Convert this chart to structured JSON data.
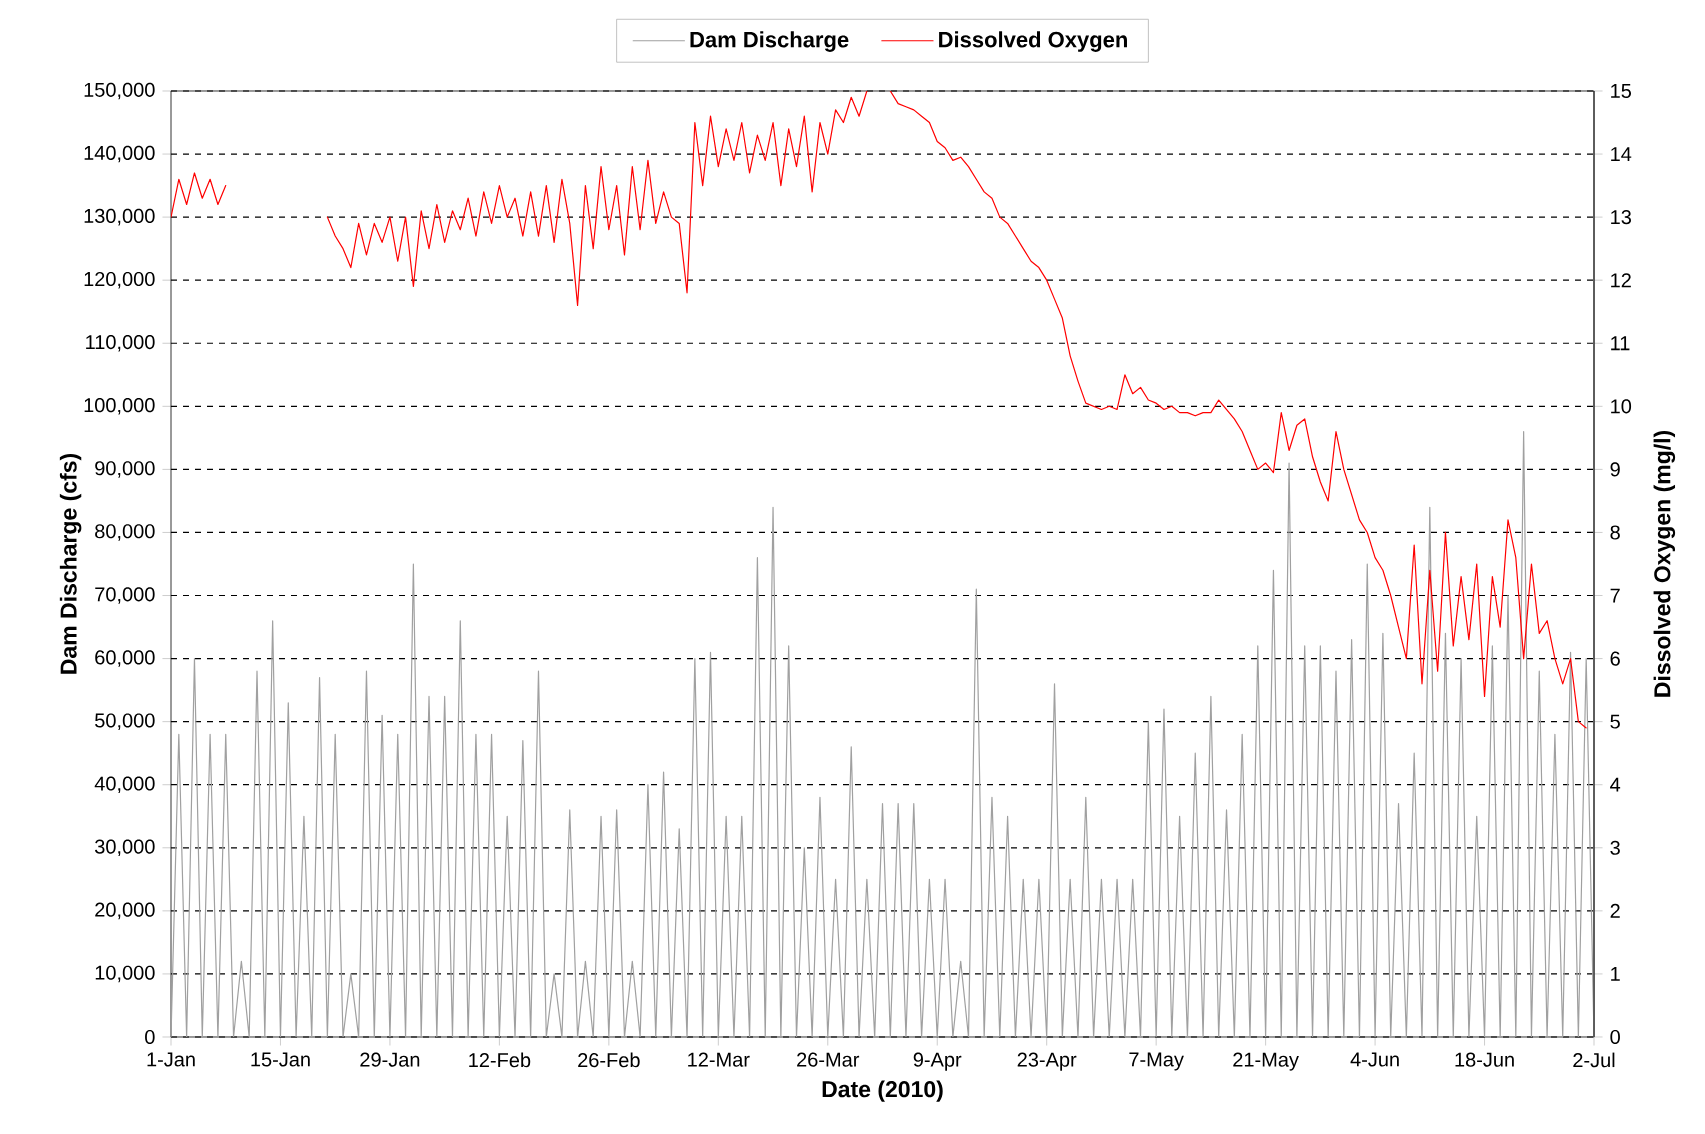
{
  "chart_data": {
    "type": "line",
    "xlabel": "Date (2010)",
    "ylabel": "Dam Discharge (cfs)",
    "y2label": "Dissolved Oxygen (mg/l)",
    "x": [
      "2010-01-01",
      "2010-01-02",
      "2010-01-03",
      "2010-01-04",
      "2010-01-05",
      "2010-01-06",
      "2010-01-07",
      "2010-01-08",
      "2010-01-09",
      "2010-01-10",
      "2010-01-11",
      "2010-01-12",
      "2010-01-13",
      "2010-01-14",
      "2010-01-15",
      "2010-01-16",
      "2010-01-17",
      "2010-01-18",
      "2010-01-19",
      "2010-01-20",
      "2010-01-21",
      "2010-01-22",
      "2010-01-23",
      "2010-01-24",
      "2010-01-25",
      "2010-01-26",
      "2010-01-27",
      "2010-01-28",
      "2010-01-29",
      "2010-01-30",
      "2010-01-31",
      "2010-02-01",
      "2010-02-02",
      "2010-02-03",
      "2010-02-04",
      "2010-02-05",
      "2010-02-06",
      "2010-02-07",
      "2010-02-08",
      "2010-02-09",
      "2010-02-10",
      "2010-02-11",
      "2010-02-12",
      "2010-02-13",
      "2010-02-14",
      "2010-02-15",
      "2010-02-16",
      "2010-02-17",
      "2010-02-18",
      "2010-02-19",
      "2010-02-20",
      "2010-02-21",
      "2010-02-22",
      "2010-02-23",
      "2010-02-24",
      "2010-02-25",
      "2010-02-26",
      "2010-02-27",
      "2010-02-28",
      "2010-03-01",
      "2010-03-02",
      "2010-03-03",
      "2010-03-04",
      "2010-03-05",
      "2010-03-06",
      "2010-03-07",
      "2010-03-08",
      "2010-03-09",
      "2010-03-10",
      "2010-03-11",
      "2010-03-12",
      "2010-03-13",
      "2010-03-14",
      "2010-03-15",
      "2010-03-16",
      "2010-03-17",
      "2010-03-18",
      "2010-03-19",
      "2010-03-20",
      "2010-03-21",
      "2010-03-22",
      "2010-03-23",
      "2010-03-24",
      "2010-03-25",
      "2010-03-26",
      "2010-03-27",
      "2010-03-28",
      "2010-03-29",
      "2010-03-30",
      "2010-03-31",
      "2010-04-01",
      "2010-04-02",
      "2010-04-03",
      "2010-04-04",
      "2010-04-05",
      "2010-04-06",
      "2010-04-07",
      "2010-04-08",
      "2010-04-09",
      "2010-04-10",
      "2010-04-11",
      "2010-04-12",
      "2010-04-13",
      "2010-04-14",
      "2010-04-15",
      "2010-04-16",
      "2010-04-17",
      "2010-04-18",
      "2010-04-19",
      "2010-04-20",
      "2010-04-21",
      "2010-04-22",
      "2010-04-23",
      "2010-04-24",
      "2010-04-25",
      "2010-04-26",
      "2010-04-27",
      "2010-04-28",
      "2010-04-29",
      "2010-04-30",
      "2010-05-01",
      "2010-05-02",
      "2010-05-03",
      "2010-05-04",
      "2010-05-05",
      "2010-05-06",
      "2010-05-07",
      "2010-05-08",
      "2010-05-09",
      "2010-05-10",
      "2010-05-11",
      "2010-05-12",
      "2010-05-13",
      "2010-05-14",
      "2010-05-15",
      "2010-05-16",
      "2010-05-17",
      "2010-05-18",
      "2010-05-19",
      "2010-05-20",
      "2010-05-21",
      "2010-05-22",
      "2010-05-23",
      "2010-05-24",
      "2010-05-25",
      "2010-05-26",
      "2010-05-27",
      "2010-05-28",
      "2010-05-29",
      "2010-05-30",
      "2010-05-31",
      "2010-06-01",
      "2010-06-02",
      "2010-06-03",
      "2010-06-04",
      "2010-06-05",
      "2010-06-06",
      "2010-06-07",
      "2010-06-08",
      "2010-06-09",
      "2010-06-10",
      "2010-06-11",
      "2010-06-12",
      "2010-06-13",
      "2010-06-14",
      "2010-06-15",
      "2010-06-16",
      "2010-06-17",
      "2010-06-18",
      "2010-06-19",
      "2010-06-20",
      "2010-06-21",
      "2010-06-22",
      "2010-06-23",
      "2010-06-24",
      "2010-06-25",
      "2010-06-26",
      "2010-06-27",
      "2010-06-28",
      "2010-06-29",
      "2010-06-30",
      "2010-07-01",
      "2010-07-02"
    ],
    "series": [
      {
        "name": "Dam Discharge",
        "color": "#a0a0a0",
        "values": [
          0,
          48000,
          0,
          60000,
          0,
          48000,
          0,
          48000,
          0,
          12000,
          0,
          58000,
          0,
          66000,
          0,
          53000,
          0,
          35000,
          0,
          57000,
          0,
          48000,
          0,
          10000,
          0,
          58000,
          0,
          51000,
          0,
          48000,
          0,
          75000,
          0,
          54000,
          0,
          54000,
          0,
          66000,
          0,
          48000,
          0,
          48000,
          0,
          35000,
          0,
          47000,
          0,
          58000,
          0,
          10000,
          0,
          36000,
          0,
          12000,
          0,
          35000,
          0,
          36000,
          0,
          12000,
          0,
          40000,
          0,
          42000,
          0,
          33000,
          0,
          60000,
          0,
          61000,
          0,
          35000,
          0,
          35000,
          0,
          76000,
          0,
          84000,
          0,
          62000,
          0,
          30000,
          0,
          38000,
          0,
          25000,
          0,
          46000,
          0,
          25000,
          0,
          37000,
          0,
          37000,
          0,
          37000,
          0,
          25000,
          0,
          25000,
          0,
          12000,
          0,
          71000,
          0,
          38000,
          0,
          35000,
          0,
          25000,
          0,
          25000,
          0,
          56000,
          0,
          25000,
          0,
          38000,
          0,
          25000,
          0,
          25000,
          0,
          25000,
          0,
          50000,
          0,
          52000,
          0,
          35000,
          0,
          45000,
          0,
          54000,
          0,
          36000,
          0,
          48000,
          0,
          62000,
          0,
          74000,
          0,
          91000,
          0,
          62000,
          0,
          62000,
          0,
          58000,
          0,
          63000,
          0,
          75000,
          0,
          64000,
          0,
          37000,
          0,
          45000,
          0,
          84000,
          0,
          64000,
          0,
          60000,
          0,
          35000,
          0,
          62000,
          0,
          70000,
          0,
          96000,
          0,
          58000,
          0,
          48000,
          0,
          61000,
          0,
          60000,
          0
        ]
      },
      {
        "name": "Dissolved Oxygen",
        "color": "#ff0000",
        "axis": "y2",
        "values": [
          13.0,
          13.6,
          13.2,
          13.7,
          13.3,
          13.6,
          13.2,
          13.5,
          null,
          null,
          null,
          null,
          null,
          null,
          null,
          null,
          null,
          null,
          null,
          null,
          13.0,
          12.7,
          12.5,
          12.2,
          12.9,
          12.4,
          12.9,
          12.6,
          13.0,
          12.3,
          13.0,
          11.9,
          13.1,
          12.5,
          13.2,
          12.6,
          13.1,
          12.8,
          13.3,
          12.7,
          13.4,
          12.9,
          13.5,
          13.0,
          13.3,
          12.7,
          13.4,
          12.7,
          13.5,
          12.6,
          13.6,
          12.9,
          11.6,
          13.5,
          12.5,
          13.8,
          12.8,
          13.5,
          12.4,
          13.8,
          12.8,
          13.9,
          12.9,
          13.4,
          13.0,
          12.9,
          11.8,
          14.5,
          13.5,
          14.6,
          13.8,
          14.4,
          13.9,
          14.5,
          13.7,
          14.3,
          13.9,
          14.5,
          13.5,
          14.4,
          13.8,
          14.6,
          13.4,
          14.5,
          14.0,
          14.7,
          14.5,
          14.9,
          14.6,
          15.0,
          null,
          null,
          15.0,
          14.8,
          14.75,
          14.7,
          14.6,
          14.5,
          14.2,
          14.1,
          13.9,
          13.95,
          13.8,
          13.6,
          13.4,
          13.3,
          13.0,
          12.9,
          12.7,
          12.5,
          12.3,
          12.2,
          12.0,
          11.7,
          11.4,
          10.8,
          10.4,
          10.05,
          10.0,
          9.95,
          10.0,
          9.95,
          10.5,
          10.2,
          10.3,
          10.1,
          10.05,
          9.95,
          10.0,
          9.9,
          9.9,
          9.85,
          9.9,
          9.9,
          10.1,
          9.95,
          9.8,
          9.6,
          9.3,
          9.0,
          9.1,
          8.95,
          9.9,
          9.3,
          9.7,
          9.8,
          9.2,
          8.8,
          8.5,
          9.6,
          9.0,
          8.6,
          8.2,
          8.0,
          7.6,
          7.4,
          7.0,
          6.5,
          6.0,
          7.8,
          5.6,
          7.4,
          5.8,
          8.0,
          6.2,
          7.3,
          6.3,
          7.5,
          5.4,
          7.3,
          6.5,
          8.2,
          7.6,
          6.0,
          7.5,
          6.4,
          6.6,
          6.0,
          5.6,
          6.0,
          5.0,
          4.9,
          null
        ]
      }
    ],
    "xlim": [
      "2010-01-01",
      "2010-07-02"
    ],
    "xticks": [
      {
        "value": "2010-01-01",
        "label": "1-Jan"
      },
      {
        "value": "2010-01-15",
        "label": "15-Jan"
      },
      {
        "value": "2010-01-29",
        "label": "29-Jan"
      },
      {
        "value": "2010-02-12",
        "label": "12-Feb"
      },
      {
        "value": "2010-02-26",
        "label": "26-Feb"
      },
      {
        "value": "2010-03-12",
        "label": "12-Mar"
      },
      {
        "value": "2010-03-26",
        "label": "26-Mar"
      },
      {
        "value": "2010-04-09",
        "label": "9-Apr"
      },
      {
        "value": "2010-04-23",
        "label": "23-Apr"
      },
      {
        "value": "2010-05-07",
        "label": "7-May"
      },
      {
        "value": "2010-05-21",
        "label": "21-May"
      },
      {
        "value": "2010-06-04",
        "label": "4-Jun"
      },
      {
        "value": "2010-06-18",
        "label": "18-Jun"
      },
      {
        "value": "2010-07-02",
        "label": "2-Jul"
      }
    ],
    "ylim": [
      0,
      150000
    ],
    "yticks": [
      0,
      {
        "value": 10000,
        "label": "10,000"
      },
      {
        "value": 20000,
        "label": "20,000"
      },
      {
        "value": 30000,
        "label": "30,000"
      },
      {
        "value": 40000,
        "label": "40,000"
      },
      {
        "value": 50000,
        "label": "50,000"
      },
      {
        "value": 60000,
        "label": "60,000"
      },
      {
        "value": 70000,
        "label": "70,000"
      },
      {
        "value": 80000,
        "label": "80,000"
      },
      {
        "value": 90000,
        "label": "90,000"
      },
      {
        "value": 100000,
        "label": "100,000"
      },
      {
        "value": 110000,
        "label": "110,000"
      },
      {
        "value": 120000,
        "label": "120,000"
      },
      {
        "value": 130000,
        "label": "130,000"
      },
      {
        "value": 140000,
        "label": "140,000"
      },
      {
        "value": 150000,
        "label": "150,000"
      }
    ],
    "y2lim": [
      0,
      15
    ],
    "y2ticks": [
      0,
      1,
      2,
      3,
      4,
      5,
      6,
      7,
      8,
      9,
      10,
      11,
      12,
      13,
      14,
      15
    ],
    "grid": "y",
    "legend": "top"
  }
}
